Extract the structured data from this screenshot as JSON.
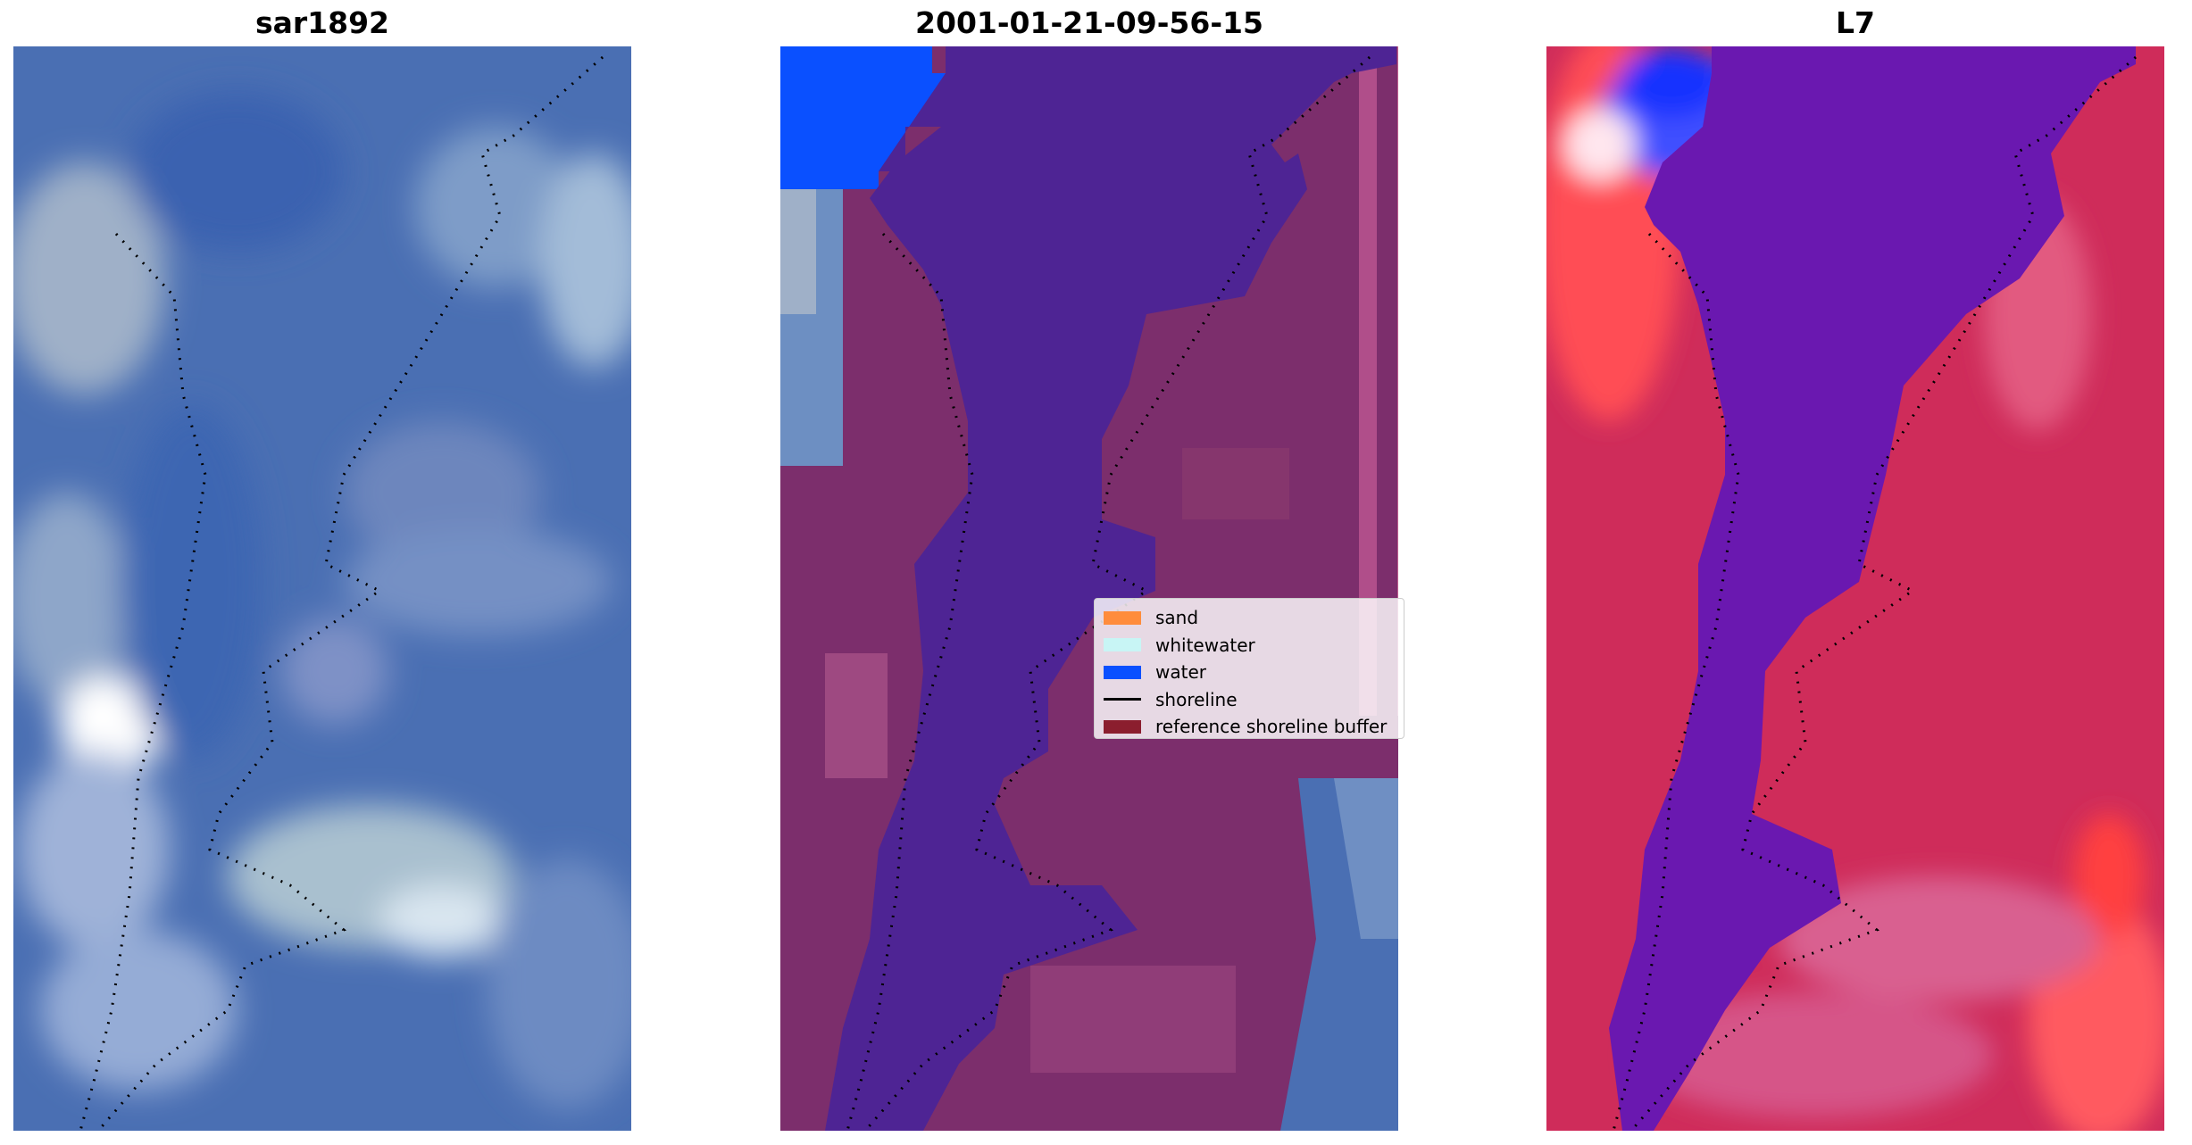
{
  "panels": [
    {
      "title": "sar1892"
    },
    {
      "title": "2001-01-21-09-56-15"
    },
    {
      "title": "L7"
    }
  ],
  "legend": {
    "items": [
      {
        "label": "sand",
        "color": "#ff8c3c",
        "kind": "patch"
      },
      {
        "label": "whitewater",
        "color": "#c8f5f5",
        "kind": "patch"
      },
      {
        "label": "water",
        "color": "#0a50ff",
        "kind": "patch"
      },
      {
        "label": "shoreline",
        "color": "#000000",
        "kind": "line"
      },
      {
        "label": "reference shoreline buffer",
        "color": "#8b1e2e",
        "kind": "patch"
      }
    ]
  },
  "colors": {
    "rgb_water": "#3e67b0",
    "rgb_land": "#6a88b8",
    "rgb_bright": "#e8eef8",
    "classified_water": "#4e2494",
    "classified_land": "#7c2e6c",
    "classified_water_patch": "#0a50ff",
    "ndwi_water": "#6a18b0",
    "ndwi_land": "#cf2c5a",
    "ndwi_high": "#ff4848",
    "ndwi_low_blue": "#2030ff"
  }
}
